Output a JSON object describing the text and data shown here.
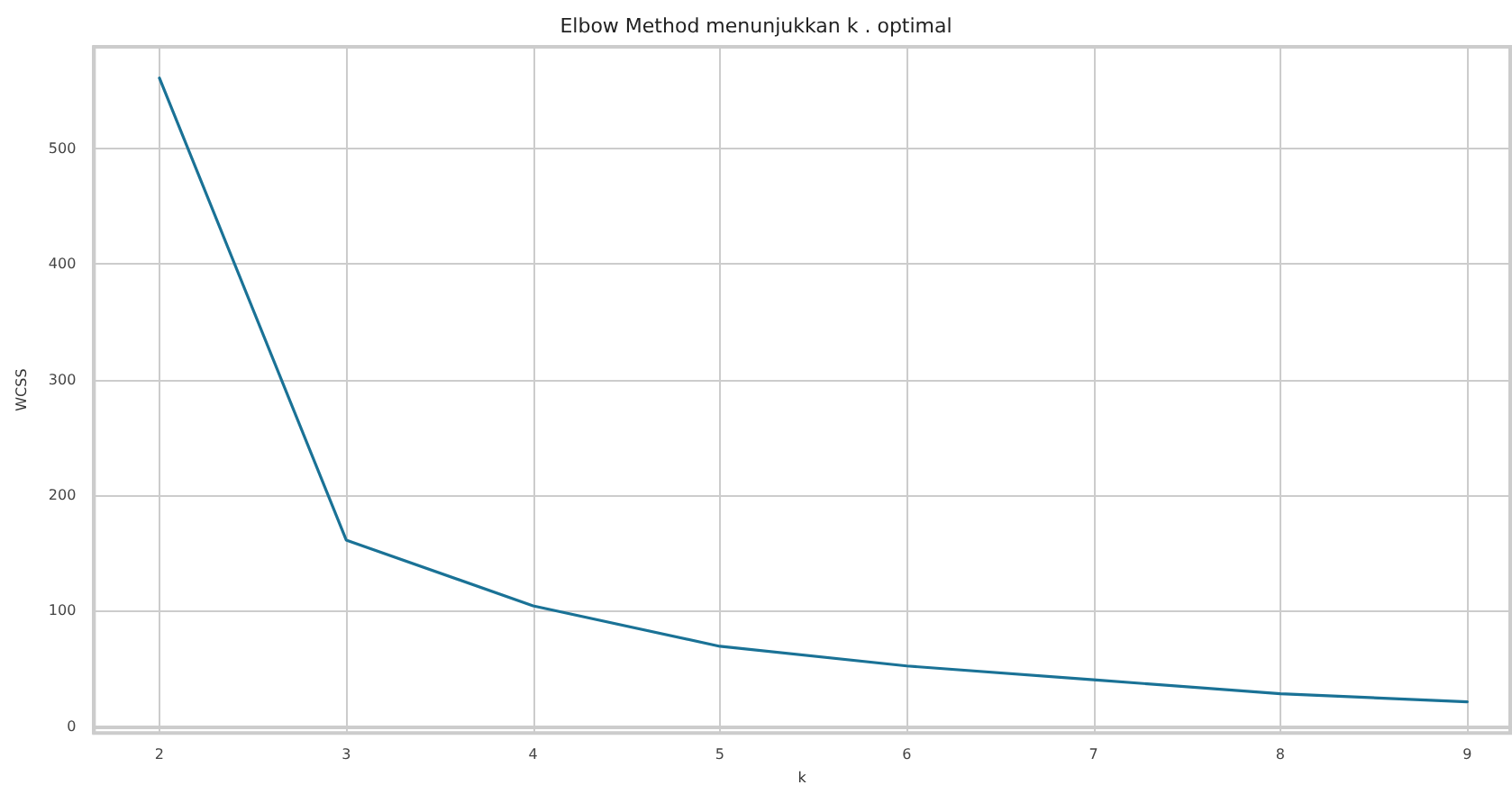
{
  "chart_data": {
    "type": "line",
    "title": "Elbow Method menunjukkan k . optimal",
    "xlabel": "k",
    "ylabel": "WCSS",
    "x": [
      2,
      3,
      4,
      5,
      6,
      7,
      8,
      9
    ],
    "series": [
      {
        "color": "#1a7296",
        "values": [
          561,
          161,
          104,
          69,
          52,
          40,
          28,
          21
        ]
      }
    ],
    "xlim": [
      1.65,
      9.23
    ],
    "xticks": [
      2,
      3,
      4,
      5,
      6,
      7,
      8,
      9
    ],
    "ylim": [
      -6,
      588
    ],
    "yticks": [
      0,
      100,
      200,
      300,
      400,
      500
    ],
    "grid": true,
    "marker": "none",
    "line_style": "solid"
  }
}
